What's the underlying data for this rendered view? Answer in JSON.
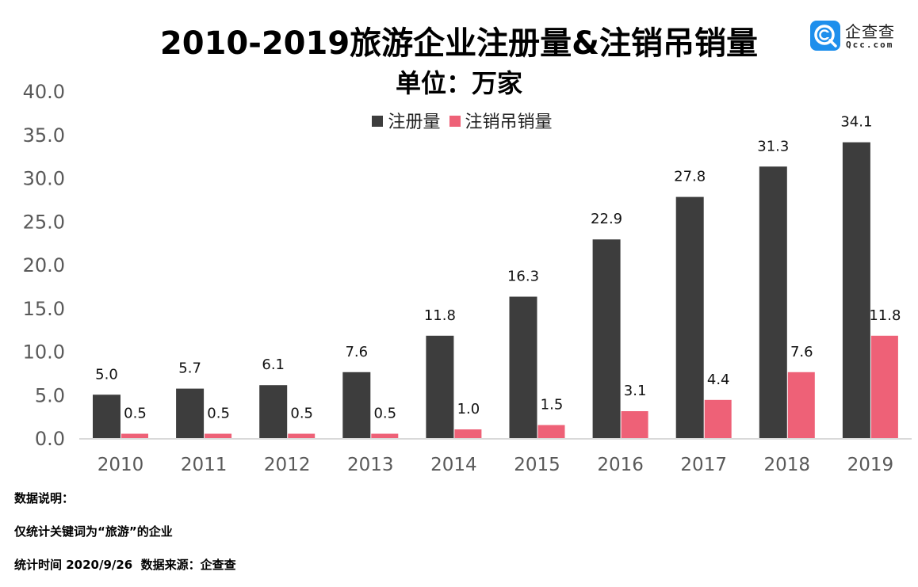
{
  "header": {
    "title": "2010-2019旅游企业注册量&注销吊销量",
    "subtitle": "单位：万家"
  },
  "logo": {
    "name": "企查查",
    "domain": "Qcc.com",
    "color": "#1e8fec"
  },
  "legend": [
    {
      "label": "注册量",
      "color": "#3d3d3d"
    },
    {
      "label": "注销吊销量",
      "color": "#ee6177"
    }
  ],
  "chart_data": {
    "type": "bar",
    "title": "2010-2019旅游企业注册量&注销吊销量",
    "subtitle": "单位：万家",
    "xlabel": "",
    "ylabel": "",
    "categories": [
      "2010",
      "2011",
      "2012",
      "2013",
      "2014",
      "2015",
      "2016",
      "2017",
      "2018",
      "2019"
    ],
    "series": [
      {
        "name": "注册量",
        "color": "#3d3d3d",
        "values": [
          5.0,
          5.7,
          6.1,
          7.6,
          11.8,
          16.3,
          22.9,
          27.8,
          31.3,
          34.1
        ]
      },
      {
        "name": "注销吊销量",
        "color": "#ee6177",
        "values": [
          0.5,
          0.5,
          0.5,
          0.5,
          1.0,
          1.5,
          3.1,
          4.4,
          7.6,
          11.8
        ]
      }
    ],
    "ylim": [
      0,
      40
    ],
    "yticks": [
      "0.0",
      "5.0",
      "10.0",
      "15.0",
      "20.0",
      "25.0",
      "30.0",
      "35.0",
      "40.0"
    ],
    "grid": false,
    "legend_position": "top-center",
    "data_labels": true
  },
  "footer": {
    "note_title": "数据说明：",
    "note_text": "仅统计关键词为“旅游”的企业",
    "source": "统计时间 2020/9/26  数据来源：企查查"
  }
}
